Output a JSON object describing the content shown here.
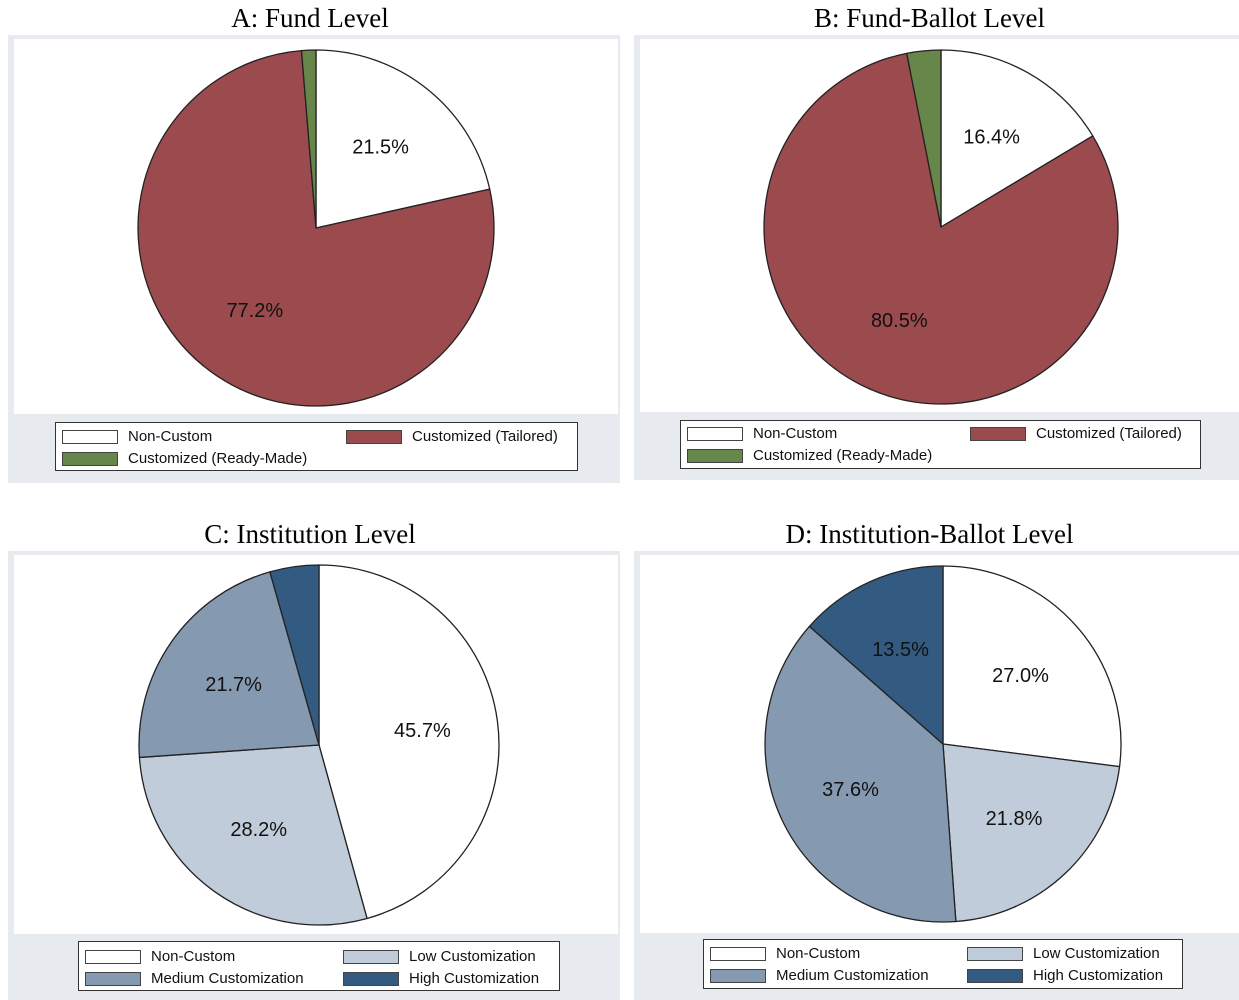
{
  "chart_data": [
    {
      "id": "A",
      "type": "pie",
      "title": "A: Fund Level",
      "slices": [
        {
          "label": "Non-Custom",
          "value": 21.5,
          "value_label": "21.5%",
          "color": "#ffffff"
        },
        {
          "label": "Customized (Tailored)",
          "value": 77.2,
          "value_label": "77.2%",
          "color": "#9b4a4e"
        },
        {
          "label": "Customized (Ready-Made)",
          "value": 1.3,
          "value_label": "",
          "color": "#66864a"
        }
      ],
      "legend": {
        "placement": "bottom",
        "columns": 2
      }
    },
    {
      "id": "B",
      "type": "pie",
      "title": "B: Fund-Ballot Level",
      "slices": [
        {
          "label": "Non-Custom",
          "value": 16.4,
          "value_label": "16.4%",
          "color": "#ffffff"
        },
        {
          "label": "Customized (Tailored)",
          "value": 80.5,
          "value_label": "80.5%",
          "color": "#9b4a4e"
        },
        {
          "label": "Customized (Ready-Made)",
          "value": 3.1,
          "value_label": "",
          "color": "#66864a"
        }
      ],
      "legend": {
        "placement": "bottom",
        "columns": 2
      }
    },
    {
      "id": "C",
      "type": "pie",
      "title": "C: Institution Level",
      "slices": [
        {
          "label": "Non-Custom",
          "value": 45.7,
          "value_label": "45.7%",
          "color": "#ffffff"
        },
        {
          "label": "Low Customization",
          "value": 28.2,
          "value_label": "28.2%",
          "color": "#c0ccd9"
        },
        {
          "label": "Medium Customization",
          "value": 21.7,
          "value_label": "21.7%",
          "color": "#8599b1"
        },
        {
          "label": "High Customization",
          "value": 4.4,
          "value_label": "",
          "color": "#335a80"
        }
      ],
      "legend": {
        "placement": "bottom",
        "columns": 2
      }
    },
    {
      "id": "D",
      "type": "pie",
      "title": "D: Institution-Ballot Level",
      "slices": [
        {
          "label": "Non-Custom",
          "value": 27.0,
          "value_label": "27.0%",
          "color": "#ffffff"
        },
        {
          "label": "Low Customization",
          "value": 21.8,
          "value_label": "21.8%",
          "color": "#c0ccd9"
        },
        {
          "label": "Medium Customization",
          "value": 37.6,
          "value_label": "37.6%",
          "color": "#8599b1"
        },
        {
          "label": "High Customization",
          "value": 13.5,
          "value_label": "13.5%",
          "color": "#335a80"
        }
      ],
      "legend": {
        "placement": "bottom",
        "columns": 2
      }
    }
  ]
}
